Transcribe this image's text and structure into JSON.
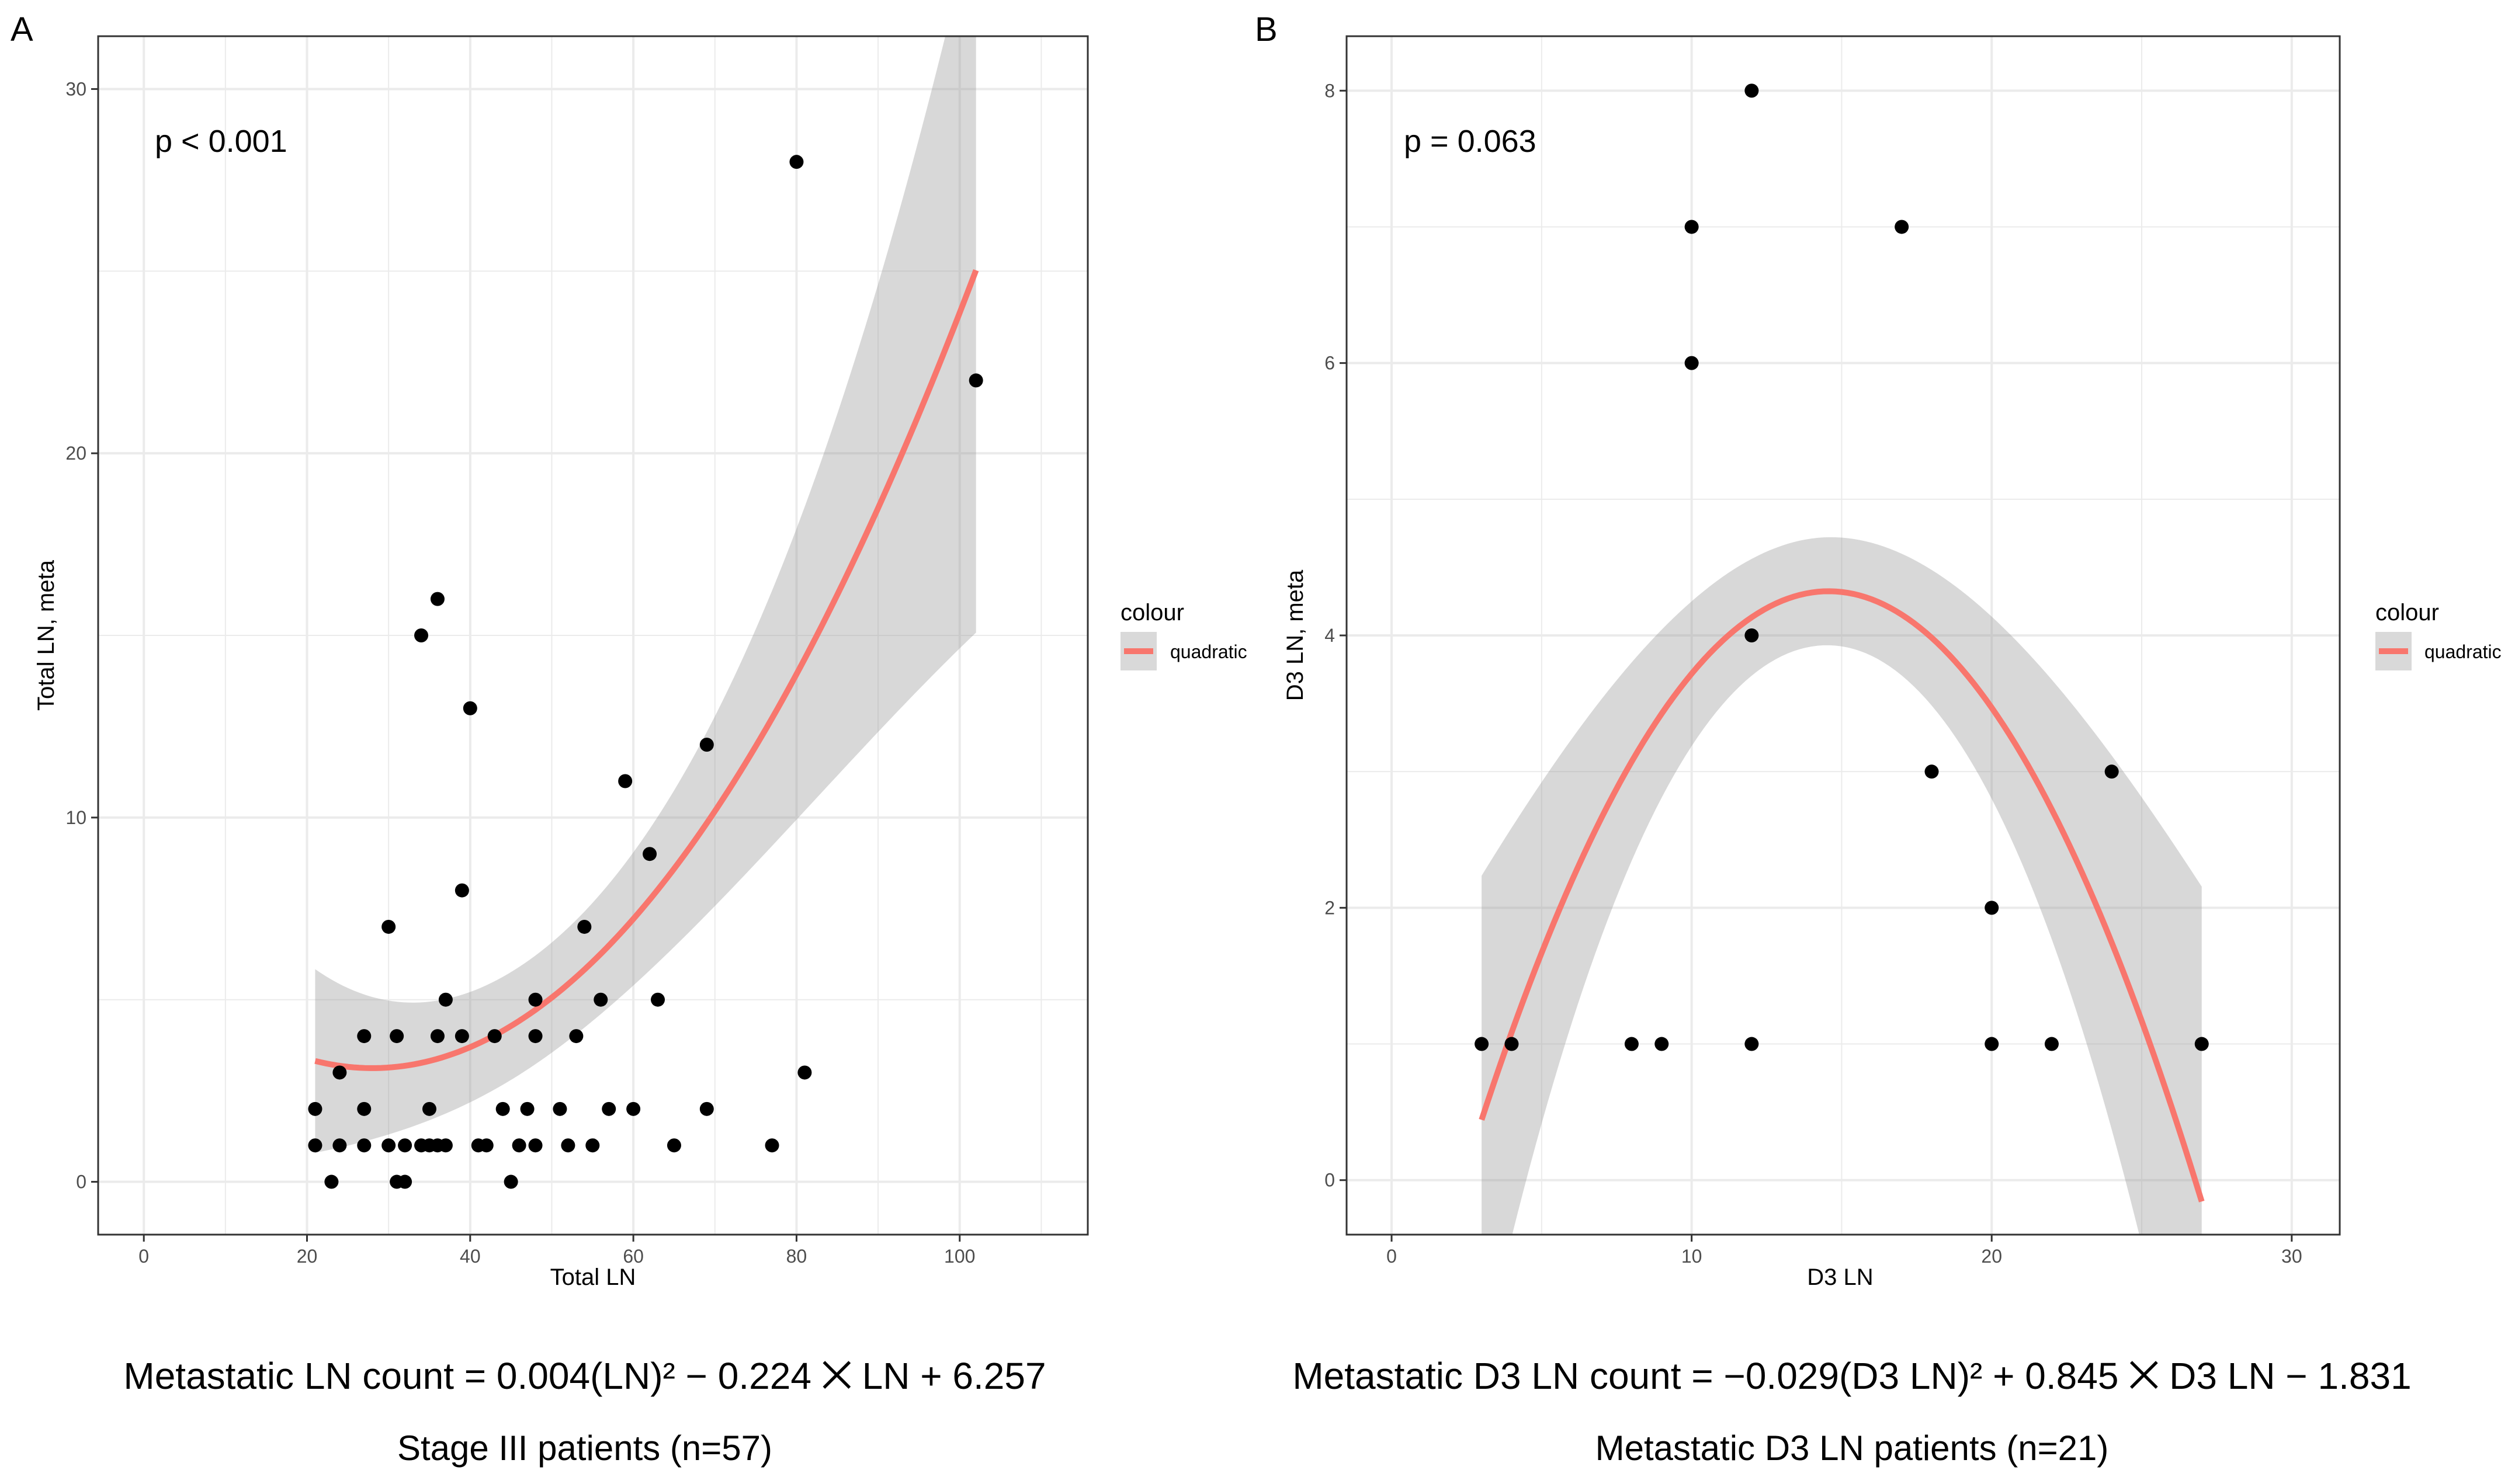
{
  "chart_data": [
    {
      "type": "scatter",
      "panel_label": "A",
      "annotation": "p < 0.001",
      "xlabel": "Total LN",
      "ylabel": "Total LN, meta",
      "xlim": [
        -5.6,
        115.7
      ],
      "ylim": [
        -1.45,
        31.45
      ],
      "xticks": [
        0,
        20,
        40,
        60,
        80,
        100
      ],
      "yticks": [
        0,
        10,
        20,
        30
      ],
      "x_tick_labels": [
        "0",
        "20",
        "40",
        "60",
        "80",
        "100"
      ],
      "y_tick_labels": [
        "0",
        "10",
        "20",
        "30"
      ],
      "legend": {
        "title": "colour",
        "label": "quadratic",
        "color": "#F8766D"
      },
      "fit": {
        "a": 0.004,
        "b": -0.224,
        "c": 6.257,
        "x_range": [
          21,
          102
        ],
        "line_label": "quadratic"
      },
      "points": [
        [
          21,
          2
        ],
        [
          21,
          1
        ],
        [
          23,
          0
        ],
        [
          24,
          3
        ],
        [
          24,
          1
        ],
        [
          27,
          4
        ],
        [
          27,
          2
        ],
        [
          27,
          1
        ],
        [
          30,
          7
        ],
        [
          30,
          1
        ],
        [
          31,
          0
        ],
        [
          31,
          4
        ],
        [
          32,
          1
        ],
        [
          32,
          0
        ],
        [
          34,
          15
        ],
        [
          34,
          1
        ],
        [
          35,
          2
        ],
        [
          35,
          1
        ],
        [
          36,
          16
        ],
        [
          36,
          4
        ],
        [
          36,
          1
        ],
        [
          37,
          5
        ],
        [
          37,
          1
        ],
        [
          39,
          8
        ],
        [
          39,
          4
        ],
        [
          40,
          13
        ],
        [
          41,
          1
        ],
        [
          42,
          1
        ],
        [
          43,
          4
        ],
        [
          44,
          2
        ],
        [
          45,
          0
        ],
        [
          46,
          1
        ],
        [
          47,
          2
        ],
        [
          48,
          5
        ],
        [
          48,
          4
        ],
        [
          48,
          1
        ],
        [
          51,
          2
        ],
        [
          52,
          1
        ],
        [
          53,
          4
        ],
        [
          54,
          7
        ],
        [
          55,
          1
        ],
        [
          56,
          5
        ],
        [
          57,
          2
        ],
        [
          59,
          11
        ],
        [
          60,
          2
        ],
        [
          62,
          9
        ],
        [
          63,
          5
        ],
        [
          65,
          1
        ],
        [
          69,
          12
        ],
        [
          69,
          2
        ],
        [
          77,
          1
        ],
        [
          80,
          28
        ],
        [
          81,
          3
        ],
        [
          102,
          22
        ]
      ],
      "equation": "Metastatic LN count = 0.004(LN)² − 0.224 ⨉ LN + 6.257",
      "subtitle": "Stage III patients (n=57)"
    },
    {
      "type": "scatter",
      "panel_label": "B",
      "annotation": "p = 0.063",
      "xlabel": "D3 LN",
      "ylabel": "D3 LN, meta",
      "xlim": [
        -1.5,
        31.6
      ],
      "ylim": [
        -0.4,
        8.4
      ],
      "xticks": [
        0,
        10,
        20,
        30
      ],
      "yticks": [
        0,
        2,
        4,
        6,
        8
      ],
      "x_tick_labels": [
        "0",
        "10",
        "20",
        "30"
      ],
      "y_tick_labels": [
        "0",
        "2",
        "4",
        "6",
        "8"
      ],
      "legend": {
        "title": "colour",
        "label": "quadratic",
        "color": "#F8766D"
      },
      "fit": {
        "a": -0.029,
        "b": 0.845,
        "c": -1.831,
        "x_range": [
          3,
          27
        ],
        "line_label": "quadratic"
      },
      "points": [
        [
          3,
          1
        ],
        [
          4,
          1
        ],
        [
          8,
          1
        ],
        [
          9,
          1
        ],
        [
          10,
          7
        ],
        [
          10,
          6
        ],
        [
          12,
          8
        ],
        [
          12,
          4
        ],
        [
          12,
          1
        ],
        [
          17,
          7
        ],
        [
          18,
          3
        ],
        [
          20,
          2
        ],
        [
          20,
          1
        ],
        [
          22,
          1
        ],
        [
          24,
          3
        ],
        [
          27,
          1
        ]
      ],
      "equation": "Metastatic D3 LN count = −0.029(D3 LN)² + 0.845 ⨉ D3 LN − 1.831",
      "subtitle": "Metastatic D3 LN patients (n=21)"
    }
  ]
}
